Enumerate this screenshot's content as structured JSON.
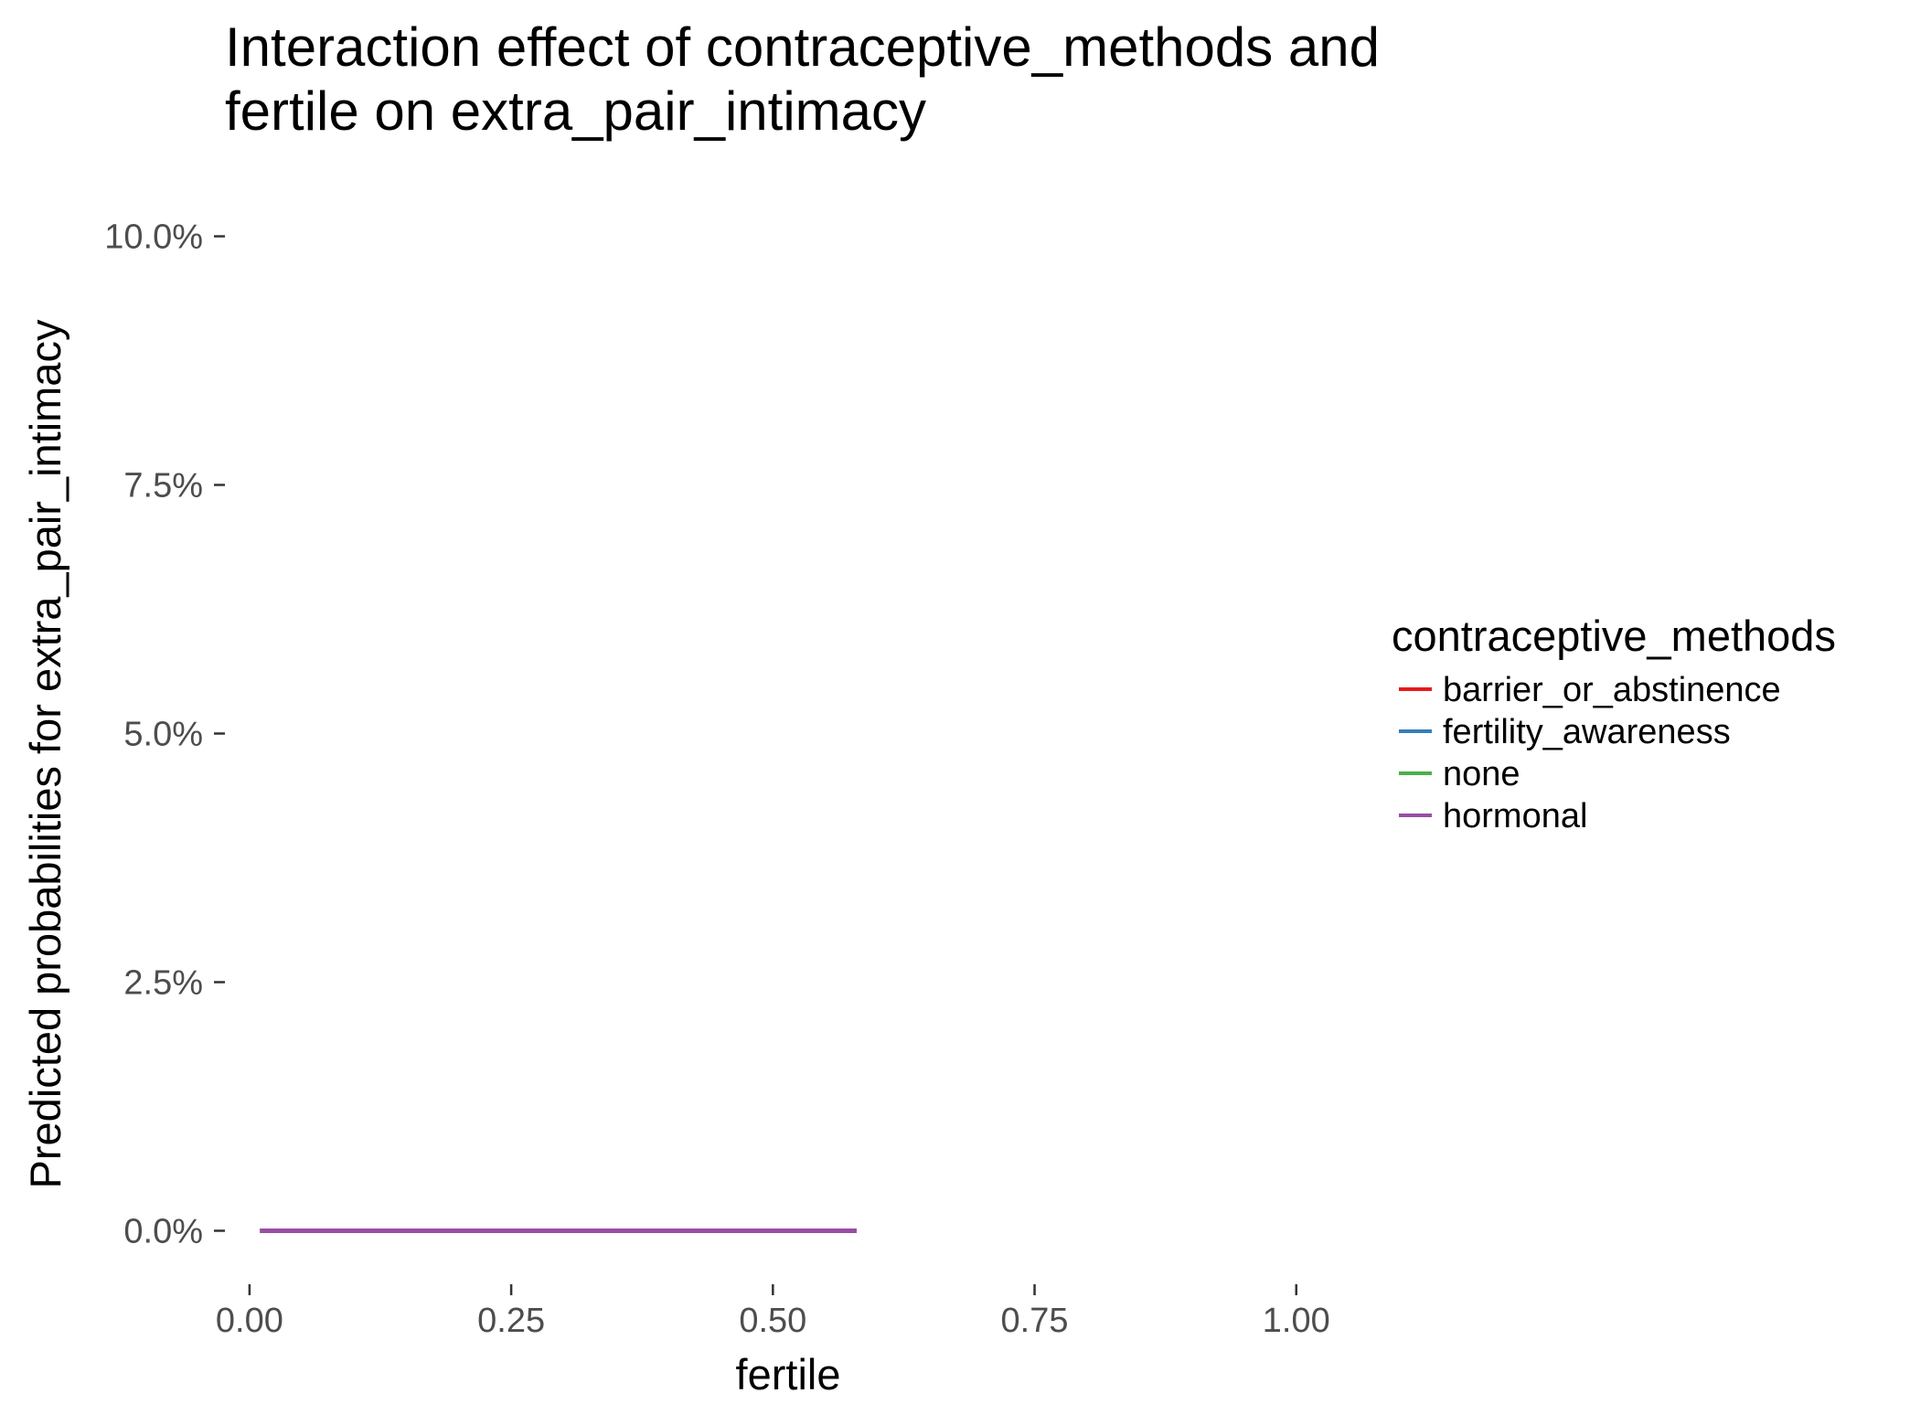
{
  "chart_data": {
    "type": "line",
    "title_lines": [
      "Interaction effect of contraceptive_methods and",
      "fertile on extra_pair_intimacy"
    ],
    "xlabel": "fertile",
    "ylabel": "Predicted probabilities for extra_pair_intimacy",
    "xlim": [
      -0.02,
      1.05
    ],
    "ylim": [
      -0.004,
      0.104
    ],
    "x_ticks": [
      {
        "value": 0.0,
        "label": "0.00"
      },
      {
        "value": 0.25,
        "label": "0.25"
      },
      {
        "value": 0.5,
        "label": "0.50"
      },
      {
        "value": 0.75,
        "label": "0.75"
      },
      {
        "value": 1.0,
        "label": "1.00"
      }
    ],
    "y_ticks": [
      {
        "value": 0.0,
        "label": "0.0%"
      },
      {
        "value": 0.025,
        "label": "2.5%"
      },
      {
        "value": 0.05,
        "label": "5.0%"
      },
      {
        "value": 0.075,
        "label": "7.5%"
      },
      {
        "value": 0.1,
        "label": "10.0%"
      }
    ],
    "grid": false,
    "legend": {
      "title": "contraceptive_methods",
      "position": "right"
    },
    "series": [
      {
        "name": "barrier_or_abstinence",
        "color": "#e41a1c",
        "x": [
          0.01,
          0.58
        ],
        "y": [
          0.0,
          0.0
        ]
      },
      {
        "name": "fertility_awareness",
        "color": "#377eb8",
        "x": [
          0.01,
          0.58
        ],
        "y": [
          0.0,
          0.0
        ]
      },
      {
        "name": "none",
        "color": "#4daf4a",
        "x": [
          0.01,
          0.58
        ],
        "y": [
          0.0,
          0.0
        ]
      },
      {
        "name": "hormonal",
        "color": "#984ea3",
        "x": [
          0.01,
          0.58
        ],
        "y": [
          0.0,
          0.0
        ]
      }
    ]
  }
}
